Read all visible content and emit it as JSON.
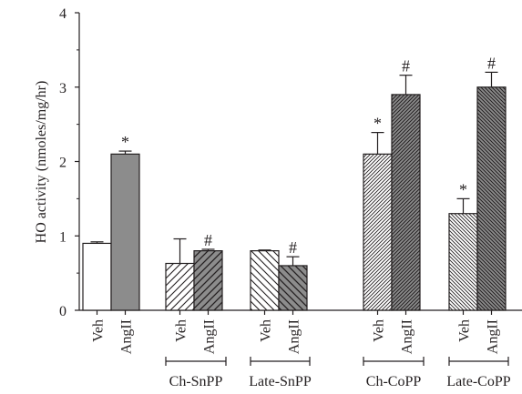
{
  "chart_data": {
    "type": "bar",
    "ylabel": "HO activity (nmoles/mg/hr)",
    "ylim": [
      0,
      4
    ],
    "yticks": [
      "0",
      "1",
      "2",
      "3",
      "4"
    ],
    "groups": [
      {
        "label": "",
        "bars": [
          {
            "category": "Veh",
            "value": 0.9,
            "error": 0.02,
            "fill": "white",
            "mark": ""
          },
          {
            "category": "AngII",
            "value": 2.1,
            "error": 0.04,
            "fill": "gray",
            "mark": "*"
          }
        ]
      },
      {
        "label": "Ch-SnPP",
        "bars": [
          {
            "category": "Veh",
            "value": 0.63,
            "error": 0.33,
            "fill": "hatch-right",
            "mark": ""
          },
          {
            "category": "AngII",
            "value": 0.8,
            "error": 0.02,
            "fill": "gray-hatch-right",
            "mark": "#"
          }
        ]
      },
      {
        "label": "Late-SnPP",
        "bars": [
          {
            "category": "Veh",
            "value": 0.8,
            "error": 0.01,
            "fill": "hatch-left",
            "mark": ""
          },
          {
            "category": "AngII",
            "value": 0.6,
            "error": 0.12,
            "fill": "gray-hatch-left",
            "mark": "#"
          }
        ]
      },
      {
        "label": "Ch-CoPP",
        "bars": [
          {
            "category": "Veh",
            "value": 2.1,
            "error": 0.29,
            "fill": "dense-hatch-right",
            "mark": "*"
          },
          {
            "category": "AngII",
            "value": 2.9,
            "error": 0.26,
            "fill": "gray-dense-hatch-right",
            "mark": "#"
          }
        ]
      },
      {
        "label": "Late-CoPP",
        "bars": [
          {
            "category": "Veh",
            "value": 1.3,
            "error": 0.2,
            "fill": "dense-hatch-left",
            "mark": "*"
          },
          {
            "category": "AngII",
            "value": 3.0,
            "error": 0.2,
            "fill": "gray-dense-hatch-left",
            "mark": "#"
          }
        ]
      }
    ],
    "colors": {
      "gray": "#8c8c8c",
      "line": "#231f20",
      "background": "#ffffff"
    }
  }
}
